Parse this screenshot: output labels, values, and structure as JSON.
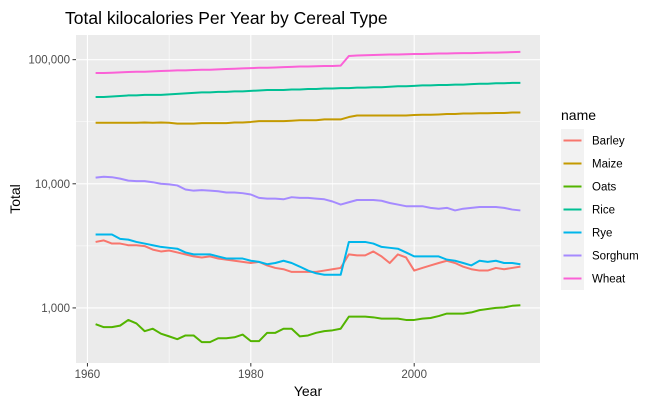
{
  "chart_data": {
    "type": "line",
    "title": "Total kilocalories Per Year by Cereal Type",
    "xlabel": "Year",
    "ylabel": "Total",
    "y_scale": "log10",
    "xlim": [
      1958.6,
      2015.4
    ],
    "ylim": [
      360,
      158000
    ],
    "x_ticks": [
      1960,
      1980,
      2000
    ],
    "x_tick_labels": [
      "1960",
      "1980",
      "2000"
    ],
    "y_ticks": [
      1000,
      10000,
      100000
    ],
    "y_tick_labels": [
      "1,000",
      "10,000",
      "100,000"
    ],
    "grid": true,
    "legend_title": "name",
    "legend_position": "right",
    "series": [
      {
        "name": "Barley",
        "color": "#F8766D",
        "x": [
          1961,
          1962,
          1963,
          1964,
          1965,
          1966,
          1967,
          1968,
          1969,
          1970,
          1971,
          1972,
          1973,
          1974,
          1975,
          1976,
          1977,
          1978,
          1979,
          1980,
          1981,
          1982,
          1983,
          1984,
          1985,
          1986,
          1987,
          1988,
          1989,
          1990,
          1991,
          1992,
          1993,
          1994,
          1995,
          1996,
          1997,
          1998,
          1999,
          2000,
          2001,
          2002,
          2003,
          2004,
          2005,
          2006,
          2007,
          2008,
          2009,
          2010,
          2011,
          2012,
          2013
        ],
        "values": [
          3400,
          3500,
          3300,
          3300,
          3200,
          3200,
          3150,
          2950,
          2850,
          2900,
          2800,
          2700,
          2600,
          2550,
          2600,
          2500,
          2450,
          2400,
          2350,
          2300,
          2350,
          2200,
          2100,
          2050,
          1950,
          1950,
          1950,
          1950,
          2000,
          2050,
          2100,
          2700,
          2650,
          2650,
          2850,
          2600,
          2300,
          2700,
          2550,
          2000,
          2100,
          2200,
          2300,
          2400,
          2300,
          2150,
          2050,
          2000,
          2000,
          2100,
          2050,
          2100,
          2150
        ]
      },
      {
        "name": "Maize",
        "color": "#C49A00",
        "x": [
          1961,
          1962,
          1963,
          1964,
          1965,
          1966,
          1967,
          1968,
          1969,
          1970,
          1971,
          1972,
          1973,
          1974,
          1975,
          1976,
          1977,
          1978,
          1979,
          1980,
          1981,
          1982,
          1983,
          1984,
          1985,
          1986,
          1987,
          1988,
          1989,
          1990,
          1991,
          1992,
          1993,
          1994,
          1995,
          1996,
          1997,
          1998,
          1999,
          2000,
          2001,
          2002,
          2003,
          2004,
          2005,
          2006,
          2007,
          2008,
          2009,
          2010,
          2011,
          2012,
          2013
        ],
        "values": [
          31000,
          31000,
          31000,
          31000,
          31000,
          31000,
          31200,
          31000,
          31200,
          31000,
          30500,
          30500,
          30500,
          30800,
          30800,
          30800,
          30800,
          31200,
          31200,
          31500,
          32000,
          32000,
          32000,
          32000,
          32200,
          32500,
          32500,
          32500,
          33000,
          33000,
          33000,
          34500,
          35500,
          35500,
          35500,
          35500,
          35500,
          35500,
          35500,
          35800,
          36000,
          36000,
          36200,
          36500,
          36500,
          36800,
          36800,
          37000,
          37000,
          37200,
          37200,
          37500,
          37500
        ]
      },
      {
        "name": "Oats",
        "color": "#53B400",
        "x": [
          1961,
          1962,
          1963,
          1964,
          1965,
          1966,
          1967,
          1968,
          1969,
          1970,
          1971,
          1972,
          1973,
          1974,
          1975,
          1976,
          1977,
          1978,
          1979,
          1980,
          1981,
          1982,
          1983,
          1984,
          1985,
          1986,
          1987,
          1988,
          1989,
          1990,
          1991,
          1992,
          1993,
          1994,
          1995,
          1996,
          1997,
          1998,
          1999,
          2000,
          2001,
          2002,
          2003,
          2004,
          2005,
          2006,
          2007,
          2008,
          2009,
          2010,
          2011,
          2012,
          2013
        ],
        "values": [
          740,
          700,
          700,
          720,
          800,
          750,
          650,
          680,
          620,
          590,
          560,
          600,
          600,
          530,
          530,
          570,
          570,
          580,
          610,
          540,
          540,
          630,
          630,
          680,
          680,
          590,
          600,
          630,
          650,
          660,
          680,
          850,
          850,
          850,
          840,
          820,
          820,
          820,
          800,
          800,
          820,
          830,
          860,
          900,
          900,
          900,
          920,
          960,
          980,
          1000,
          1010,
          1040,
          1050
        ]
      },
      {
        "name": "Rice",
        "color": "#00C094",
        "x": [
          1961,
          1962,
          1963,
          1964,
          1965,
          1966,
          1967,
          1968,
          1969,
          1970,
          1971,
          1972,
          1973,
          1974,
          1975,
          1976,
          1977,
          1978,
          1979,
          1980,
          1981,
          1982,
          1983,
          1984,
          1985,
          1986,
          1987,
          1988,
          1989,
          1990,
          1991,
          1992,
          1993,
          1994,
          1995,
          1996,
          1997,
          1998,
          1999,
          2000,
          2001,
          2002,
          2003,
          2004,
          2005,
          2006,
          2007,
          2008,
          2009,
          2010,
          2011,
          2012,
          2013
        ],
        "values": [
          50000,
          50000,
          50500,
          51000,
          51500,
          51500,
          52000,
          52000,
          52000,
          52500,
          53000,
          53500,
          54000,
          54500,
          54500,
          55000,
          55000,
          55500,
          55500,
          56000,
          56500,
          57000,
          57000,
          57000,
          57500,
          57500,
          58000,
          58000,
          58500,
          58500,
          59000,
          59000,
          59500,
          59500,
          60000,
          60000,
          60500,
          61000,
          61000,
          61500,
          62000,
          62000,
          62500,
          62500,
          63000,
          63000,
          63500,
          64000,
          64000,
          64500,
          64500,
          65000,
          65000
        ]
      },
      {
        "name": "Rye",
        "color": "#00B6EB",
        "x": [
          1961,
          1962,
          1963,
          1964,
          1965,
          1966,
          1967,
          1968,
          1969,
          1970,
          1971,
          1972,
          1973,
          1974,
          1975,
          1976,
          1977,
          1978,
          1979,
          1980,
          1981,
          1982,
          1983,
          1984,
          1985,
          1986,
          1987,
          1988,
          1989,
          1990,
          1991,
          1992,
          1993,
          1994,
          1995,
          1996,
          1997,
          1998,
          1999,
          2000,
          2001,
          2002,
          2003,
          2004,
          2005,
          2006,
          2007,
          2008,
          2009,
          2010,
          2011,
          2012,
          2013
        ],
        "values": [
          3900,
          3900,
          3900,
          3600,
          3550,
          3400,
          3300,
          3200,
          3100,
          3050,
          3000,
          2800,
          2700,
          2700,
          2700,
          2600,
          2500,
          2500,
          2500,
          2400,
          2350,
          2250,
          2300,
          2400,
          2300,
          2150,
          2000,
          1900,
          1850,
          1850,
          1850,
          3400,
          3400,
          3400,
          3300,
          3100,
          3050,
          3000,
          2800,
          2600,
          2600,
          2600,
          2600,
          2450,
          2400,
          2300,
          2200,
          2400,
          2350,
          2400,
          2300,
          2300,
          2250
        ]
      },
      {
        "name": "Sorghum",
        "color": "#A58AFF",
        "x": [
          1961,
          1962,
          1963,
          1964,
          1965,
          1966,
          1967,
          1968,
          1969,
          1970,
          1971,
          1972,
          1973,
          1974,
          1975,
          1976,
          1977,
          1978,
          1979,
          1980,
          1981,
          1982,
          1983,
          1984,
          1985,
          1986,
          1987,
          1988,
          1989,
          1990,
          1991,
          1992,
          1993,
          1994,
          1995,
          1996,
          1997,
          1998,
          1999,
          2000,
          2001,
          2002,
          2003,
          2004,
          2005,
          2006,
          2007,
          2008,
          2009,
          2010,
          2011,
          2012,
          2013
        ],
        "values": [
          11200,
          11400,
          11300,
          11000,
          10600,
          10500,
          10500,
          10300,
          10000,
          9900,
          9700,
          9000,
          8800,
          8900,
          8800,
          8700,
          8500,
          8500,
          8400,
          8200,
          7700,
          7600,
          7600,
          7500,
          7800,
          7700,
          7700,
          7600,
          7500,
          7200,
          6800,
          7100,
          7400,
          7400,
          7400,
          7300,
          7000,
          6800,
          6600,
          6600,
          6600,
          6400,
          6300,
          6400,
          6100,
          6300,
          6400,
          6500,
          6500,
          6500,
          6400,
          6200,
          6100
        ]
      },
      {
        "name": "Wheat",
        "color": "#FB61D7",
        "x": [
          1961,
          1962,
          1963,
          1964,
          1965,
          1966,
          1967,
          1968,
          1969,
          1970,
          1971,
          1972,
          1973,
          1974,
          1975,
          1976,
          1977,
          1978,
          1979,
          1980,
          1981,
          1982,
          1983,
          1984,
          1985,
          1986,
          1987,
          1988,
          1989,
          1990,
          1991,
          1992,
          1993,
          1994,
          1995,
          1996,
          1997,
          1998,
          1999,
          2000,
          2001,
          2002,
          2003,
          2004,
          2005,
          2006,
          2007,
          2008,
          2009,
          2010,
          2011,
          2012,
          2013
        ],
        "values": [
          78000,
          78000,
          78500,
          79000,
          79500,
          80000,
          80000,
          80500,
          81000,
          81500,
          82000,
          82000,
          82500,
          83000,
          83000,
          83500,
          84000,
          84500,
          85000,
          85500,
          86000,
          86000,
          86500,
          87000,
          87500,
          88000,
          88000,
          88500,
          89000,
          89000,
          89500,
          107000,
          108000,
          108500,
          109000,
          109500,
          110000,
          110000,
          110500,
          111000,
          111000,
          111500,
          112000,
          112000,
          112500,
          113000,
          113000,
          113500,
          114000,
          114000,
          114500,
          115000,
          115500
        ]
      }
    ]
  }
}
